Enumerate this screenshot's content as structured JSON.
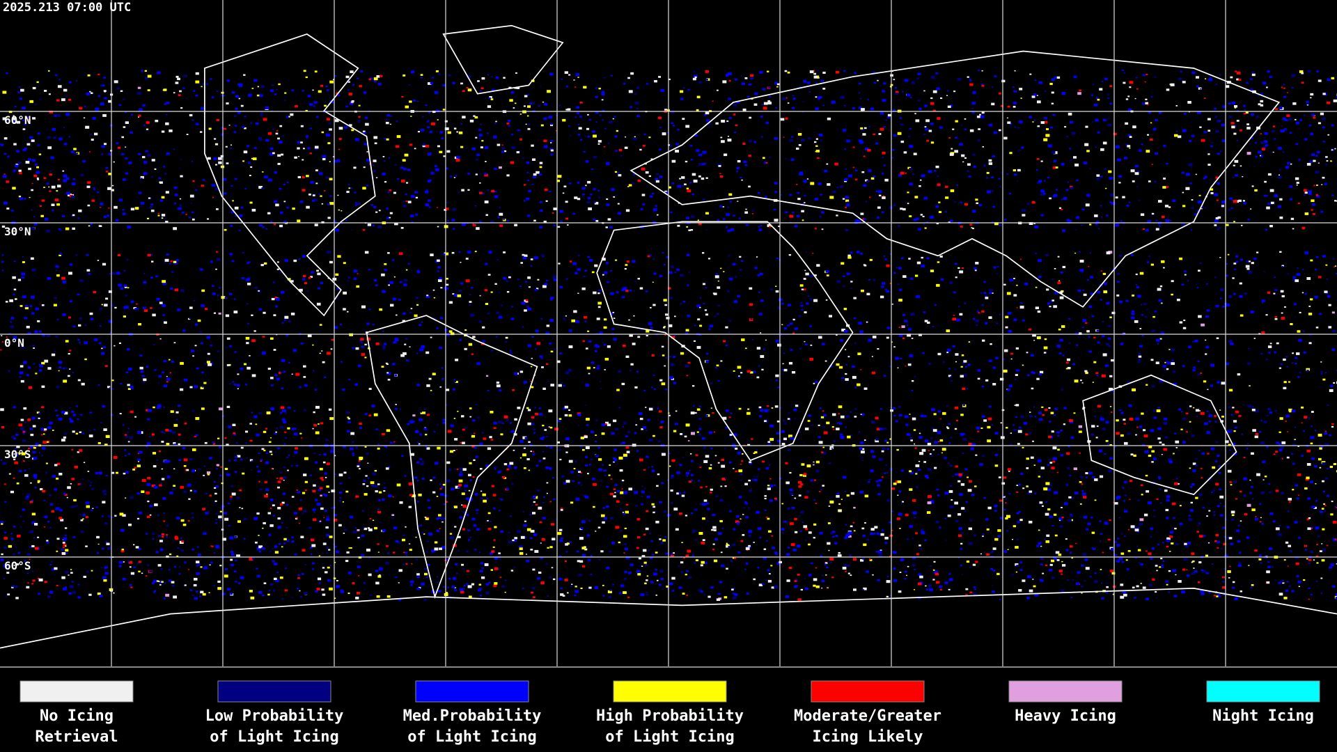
{
  "header": {
    "timestamp": "2025.213 07:00 UTC"
  },
  "map": {
    "latitude_labels": [
      "60°N",
      "30°N",
      "0°N",
      "30°S",
      "60°S"
    ]
  },
  "legend": {
    "items": [
      {
        "color": "#f0f0f0",
        "label": [
          "No Icing",
          "Retrieval"
        ]
      },
      {
        "color": "#000080",
        "label": [
          "Low Probability",
          "of Light Icing"
        ]
      },
      {
        "color": "#0000ff",
        "label": [
          "Med.Probability",
          "of Light Icing"
        ]
      },
      {
        "color": "#ffff00",
        "label": [
          "High Probability",
          "of Light Icing"
        ]
      },
      {
        "color": "#ff0000",
        "label": [
          "Moderate/Greater",
          "Icing Likely"
        ]
      },
      {
        "color": "#e0a0e0",
        "label": [
          "Heavy Icing",
          ""
        ]
      },
      {
        "color": "#00ffff",
        "label": [
          "Night Icing",
          ""
        ]
      }
    ]
  }
}
